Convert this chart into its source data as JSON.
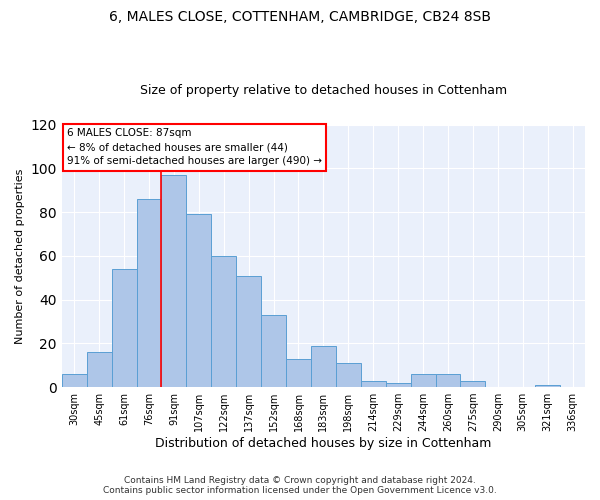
{
  "title1": "6, MALES CLOSE, COTTENHAM, CAMBRIDGE, CB24 8SB",
  "title2": "Size of property relative to detached houses in Cottenham",
  "xlabel": "Distribution of detached houses by size in Cottenham",
  "ylabel": "Number of detached properties",
  "bar_labels": [
    "30sqm",
    "45sqm",
    "61sqm",
    "76sqm",
    "91sqm",
    "107sqm",
    "122sqm",
    "137sqm",
    "152sqm",
    "168sqm",
    "183sqm",
    "198sqm",
    "214sqm",
    "229sqm",
    "244sqm",
    "260sqm",
    "275sqm",
    "290sqm",
    "305sqm",
    "321sqm",
    "336sqm"
  ],
  "bar_values": [
    6,
    16,
    54,
    86,
    97,
    79,
    60,
    51,
    33,
    13,
    19,
    11,
    3,
    2,
    6,
    6,
    3,
    0,
    0,
    1,
    0
  ],
  "bar_color": "#aec6e8",
  "bar_edgecolor": "#5a9fd4",
  "annotation_line1": "6 MALES CLOSE: 87sqm",
  "annotation_line2": "← 8% of detached houses are smaller (44)",
  "annotation_line3": "91% of semi-detached houses are larger (490) →",
  "vline_x_index": 3.5,
  "ylim": [
    0,
    120
  ],
  "yticks": [
    0,
    20,
    40,
    60,
    80,
    100,
    120
  ],
  "background_color": "#eaf0fb",
  "footnote1": "Contains HM Land Registry data © Crown copyright and database right 2024.",
  "footnote2": "Contains public sector information licensed under the Open Government Licence v3.0."
}
